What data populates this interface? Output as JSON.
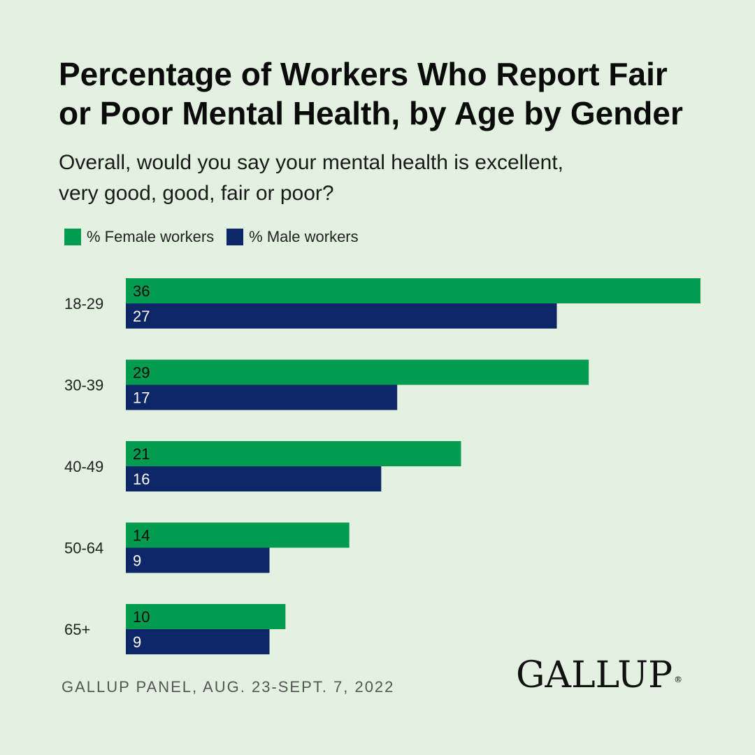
{
  "title_lines": [
    "Percentage of Workers Who Report Fair",
    "or Poor Mental Health, by Age by Gender"
  ],
  "subtitle_lines": [
    "Overall, would you say your mental health is excellent,",
    "very good, good, fair or poor?"
  ],
  "legend": {
    "female_label": "% Female workers",
    "male_label": "% Male workers"
  },
  "colors": {
    "female": "#009b4e",
    "male": "#0c2668",
    "background": "#e3f1e1"
  },
  "source": "GALLUP PANEL, AUG. 23-SEPT. 7, 2022",
  "logo_text": "GALLUP",
  "logo_mark": "®",
  "chart_data": {
    "type": "bar",
    "orientation": "horizontal",
    "categories": [
      "18-29",
      "30-39",
      "40-49",
      "50-64",
      "65+"
    ],
    "series": [
      {
        "name": "% Female workers",
        "values": [
          36,
          29,
          21,
          14,
          10
        ],
        "color": "#009b4e"
      },
      {
        "name": "% Male workers",
        "values": [
          27,
          17,
          16,
          9,
          9
        ],
        "color": "#0c2668"
      }
    ],
    "title": "Percentage of Workers Who Report Fair or Poor Mental Health, by Age by Gender",
    "xlabel": "",
    "ylabel": "",
    "xlim": [
      0,
      36
    ],
    "grid": false,
    "legend_position": "top-left"
  }
}
